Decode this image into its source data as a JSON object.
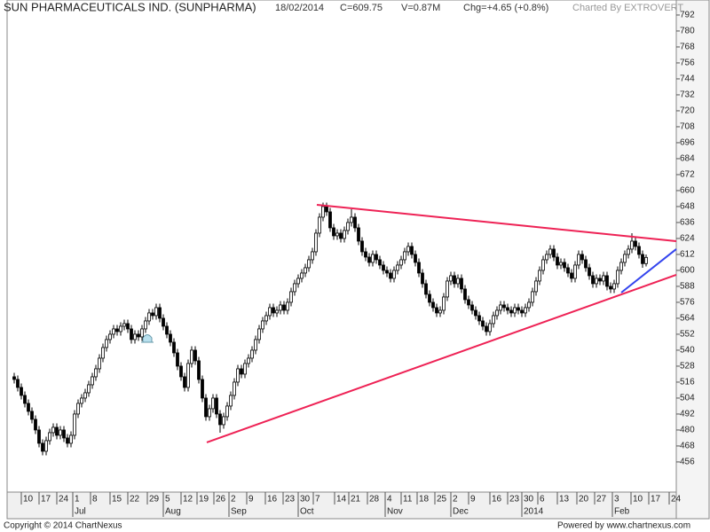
{
  "chart_data": {
    "type": "candlestick",
    "title": "SUN PHARMACEUTICALS IND. (SUNPHARMA)",
    "date": "18/02/2014",
    "close_label": "C=609.75",
    "volume_label": "V=0.87M",
    "change_label": "Chg=+4.65 (+0.8%)",
    "credit": "Charted By EXTROVERT",
    "copyright": "Copyright © 2014 ChartNexus",
    "powered_by": "Powered by www.chartnexus.com",
    "up_color": "#ffffff",
    "down_color": "#000000",
    "ohlc": [
      [
        520,
        523,
        515,
        518
      ],
      [
        518,
        521,
        509,
        512
      ],
      [
        512,
        515,
        503,
        506
      ],
      [
        506,
        509,
        497,
        500
      ],
      [
        500,
        503,
        491,
        494
      ],
      [
        494,
        497,
        485,
        488
      ],
      [
        488,
        491,
        477,
        480
      ],
      [
        480,
        483,
        467,
        470
      ],
      [
        470,
        473,
        461,
        464
      ],
      [
        464,
        475,
        461,
        472
      ],
      [
        472,
        481,
        469,
        478
      ],
      [
        478,
        485,
        475,
        482
      ],
      [
        482,
        485,
        473,
        476
      ],
      [
        476,
        483,
        473,
        480
      ],
      [
        480,
        483,
        471,
        474
      ],
      [
        474,
        477,
        467,
        470
      ],
      [
        470,
        479,
        467,
        476
      ],
      [
        476,
        495,
        473,
        492
      ],
      [
        492,
        503,
        489,
        500
      ],
      [
        500,
        507,
        497,
        504
      ],
      [
        504,
        511,
        501,
        508
      ],
      [
        508,
        517,
        505,
        514
      ],
      [
        514,
        523,
        511,
        520
      ],
      [
        520,
        529,
        517,
        526
      ],
      [
        526,
        537,
        523,
        534
      ],
      [
        534,
        545,
        531,
        542
      ],
      [
        542,
        551,
        539,
        548
      ],
      [
        548,
        555,
        545,
        552
      ],
      [
        552,
        559,
        549,
        556
      ],
      [
        556,
        559,
        551,
        554
      ],
      [
        554,
        561,
        551,
        558
      ],
      [
        558,
        563,
        555,
        560
      ],
      [
        560,
        563,
        553,
        556
      ],
      [
        556,
        559,
        545,
        548
      ],
      [
        548,
        555,
        545,
        552
      ],
      [
        552,
        555,
        547,
        550
      ],
      [
        550,
        559,
        547,
        556
      ],
      [
        556,
        565,
        553,
        562
      ],
      [
        562,
        571,
        559,
        568
      ],
      [
        568,
        571,
        563,
        566
      ],
      [
        566,
        575,
        563,
        572
      ],
      [
        572,
        575,
        561,
        564
      ],
      [
        564,
        567,
        555,
        558
      ],
      [
        558,
        561,
        549,
        552
      ],
      [
        552,
        555,
        543,
        546
      ],
      [
        546,
        549,
        535,
        538
      ],
      [
        538,
        541,
        525,
        528
      ],
      [
        528,
        531,
        517,
        520
      ],
      [
        520,
        523,
        509,
        512
      ],
      [
        512,
        533,
        509,
        530
      ],
      [
        530,
        543,
        527,
        540
      ],
      [
        540,
        543,
        529,
        532
      ],
      [
        532,
        535,
        515,
        518
      ],
      [
        518,
        521,
        501,
        504
      ],
      [
        504,
        507,
        487,
        490
      ],
      [
        490,
        499,
        487,
        496
      ],
      [
        496,
        507,
        493,
        504
      ],
      [
        504,
        507,
        489,
        492
      ],
      [
        492,
        495,
        478,
        484
      ],
      [
        484,
        493,
        481,
        490
      ],
      [
        490,
        501,
        487,
        498
      ],
      [
        498,
        509,
        495,
        506
      ],
      [
        506,
        519,
        503,
        516
      ],
      [
        516,
        529,
        513,
        526
      ],
      [
        526,
        529,
        519,
        522
      ],
      [
        522,
        533,
        519,
        530
      ],
      [
        530,
        537,
        527,
        534
      ],
      [
        534,
        543,
        531,
        540
      ],
      [
        540,
        551,
        537,
        548
      ],
      [
        548,
        559,
        545,
        556
      ],
      [
        556,
        565,
        553,
        562
      ],
      [
        562,
        569,
        559,
        566
      ],
      [
        566,
        575,
        563,
        572
      ],
      [
        572,
        575,
        565,
        568
      ],
      [
        568,
        573,
        565,
        570
      ],
      [
        570,
        577,
        567,
        574
      ],
      [
        574,
        577,
        567,
        570
      ],
      [
        570,
        579,
        567,
        576
      ],
      [
        576,
        587,
        573,
        584
      ],
      [
        584,
        593,
        581,
        590
      ],
      [
        590,
        597,
        587,
        594
      ],
      [
        594,
        601,
        591,
        598
      ],
      [
        598,
        605,
        595,
        602
      ],
      [
        602,
        611,
        599,
        608
      ],
      [
        608,
        617,
        605,
        614
      ],
      [
        614,
        631,
        611,
        628
      ],
      [
        628,
        643,
        625,
        640
      ],
      [
        640,
        651,
        637,
        648
      ],
      [
        648,
        651,
        641,
        644
      ],
      [
        644,
        647,
        629,
        632
      ],
      [
        632,
        635,
        623,
        626
      ],
      [
        626,
        631,
        623,
        628
      ],
      [
        628,
        631,
        621,
        624
      ],
      [
        624,
        633,
        621,
        630
      ],
      [
        630,
        639,
        627,
        636
      ],
      [
        636,
        646,
        633,
        640
      ],
      [
        640,
        643,
        629,
        632
      ],
      [
        632,
        635,
        619,
        622
      ],
      [
        622,
        625,
        611,
        614
      ],
      [
        614,
        617,
        607,
        610
      ],
      [
        610,
        613,
        603,
        606
      ],
      [
        606,
        615,
        603,
        612
      ],
      [
        612,
        615,
        605,
        608
      ],
      [
        608,
        611,
        601,
        604
      ],
      [
        604,
        607,
        597,
        600
      ],
      [
        600,
        603,
        595,
        598
      ],
      [
        598,
        601,
        591,
        594
      ],
      [
        594,
        603,
        591,
        600
      ],
      [
        600,
        607,
        597,
        604
      ],
      [
        604,
        611,
        601,
        608
      ],
      [
        608,
        617,
        605,
        614
      ],
      [
        614,
        621,
        611,
        618
      ],
      [
        618,
        621,
        609,
        612
      ],
      [
        612,
        615,
        603,
        606
      ],
      [
        606,
        609,
        595,
        598
      ],
      [
        598,
        601,
        587,
        590
      ],
      [
        590,
        593,
        579,
        582
      ],
      [
        582,
        585,
        573,
        576
      ],
      [
        576,
        579,
        569,
        572
      ],
      [
        572,
        575,
        565,
        568
      ],
      [
        568,
        573,
        565,
        570
      ],
      [
        570,
        583,
        567,
        580
      ],
      [
        580,
        595,
        577,
        592
      ],
      [
        592,
        599,
        589,
        596
      ],
      [
        596,
        599,
        587,
        590
      ],
      [
        590,
        597,
        587,
        594
      ],
      [
        594,
        597,
        583,
        586
      ],
      [
        586,
        589,
        575,
        578
      ],
      [
        578,
        581,
        571,
        574
      ],
      [
        574,
        577,
        567,
        570
      ],
      [
        570,
        573,
        563,
        566
      ],
      [
        566,
        569,
        559,
        562
      ],
      [
        562,
        565,
        555,
        558
      ],
      [
        558,
        561,
        551,
        554
      ],
      [
        554,
        563,
        551,
        560
      ],
      [
        560,
        569,
        557,
        566
      ],
      [
        566,
        573,
        563,
        570
      ],
      [
        570,
        577,
        567,
        574
      ],
      [
        574,
        577,
        569,
        572
      ],
      [
        572,
        575,
        567,
        570
      ],
      [
        570,
        573,
        565,
        568
      ],
      [
        568,
        575,
        565,
        572
      ],
      [
        572,
        575,
        567,
        570
      ],
      [
        570,
        573,
        565,
        568
      ],
      [
        568,
        575,
        565,
        572
      ],
      [
        572,
        579,
        569,
        576
      ],
      [
        576,
        587,
        573,
        584
      ],
      [
        584,
        595,
        581,
        592
      ],
      [
        592,
        603,
        589,
        600
      ],
      [
        600,
        611,
        597,
        608
      ],
      [
        608,
        615,
        605,
        612
      ],
      [
        612,
        619,
        609,
        616
      ],
      [
        616,
        619,
        607,
        610
      ],
      [
        610,
        613,
        601,
        604
      ],
      [
        604,
        609,
        601,
        606
      ],
      [
        606,
        609,
        599,
        602
      ],
      [
        602,
        605,
        595,
        598
      ],
      [
        598,
        601,
        591,
        594
      ],
      [
        594,
        607,
        591,
        604
      ],
      [
        604,
        615,
        601,
        612
      ],
      [
        612,
        615,
        605,
        608
      ],
      [
        608,
        611,
        599,
        602
      ],
      [
        602,
        605,
        593,
        596
      ],
      [
        596,
        599,
        587,
        590
      ],
      [
        590,
        597,
        587,
        594
      ],
      [
        594,
        597,
        589,
        592
      ],
      [
        592,
        599,
        589,
        596
      ],
      [
        596,
        599,
        585,
        588
      ],
      [
        588,
        591,
        583,
        586
      ],
      [
        586,
        593,
        583,
        590
      ],
      [
        590,
        603,
        587,
        600
      ],
      [
        600,
        609,
        597,
        606
      ],
      [
        606,
        615,
        603,
        612
      ],
      [
        612,
        619,
        609,
        616
      ],
      [
        616,
        628,
        613,
        622
      ],
      [
        622,
        625,
        615,
        618
      ],
      [
        618,
        621,
        609,
        612
      ],
      [
        612,
        615,
        602,
        605.1
      ],
      [
        605.1,
        612,
        603,
        609.75
      ]
    ],
    "xlim": [
      -2,
      186.5
    ],
    "ylim": [
      433.3,
      803.3
    ],
    "yticks": [
      456,
      468,
      480,
      492,
      504,
      516,
      528,
      540,
      552,
      564,
      576,
      588,
      600,
      612,
      624,
      636,
      648,
      660,
      672,
      684,
      696,
      708,
      720,
      732,
      744,
      756,
      768,
      780,
      792
    ],
    "xticks": [
      {
        "value": 2,
        "label": "10"
      },
      {
        "value": 7,
        "label": "17"
      },
      {
        "value": 12,
        "label": "24"
      },
      {
        "value": 16.5,
        "label": "1"
      },
      {
        "value": 21.5,
        "label": "8"
      },
      {
        "value": 27,
        "label": "15"
      },
      {
        "value": 32,
        "label": "22"
      },
      {
        "value": 37.5,
        "label": "29"
      },
      {
        "value": 42,
        "label": "5"
      },
      {
        "value": 47,
        "label": "12"
      },
      {
        "value": 51.5,
        "label": "19"
      },
      {
        "value": 56.25,
        "label": "26"
      },
      {
        "value": 60.5,
        "label": "2"
      },
      {
        "value": 65.5,
        "label": "9"
      },
      {
        "value": 70.75,
        "label": "16"
      },
      {
        "value": 75.75,
        "label": "23"
      },
      {
        "value": 80,
        "label": "30"
      },
      {
        "value": 84.25,
        "label": "7"
      },
      {
        "value": 90.25,
        "label": "14"
      },
      {
        "value": 94.25,
        "label": "21"
      },
      {
        "value": 99.5,
        "label": "28"
      },
      {
        "value": 104.5,
        "label": "4"
      },
      {
        "value": 109,
        "label": "11"
      },
      {
        "value": 113.5,
        "label": "18"
      },
      {
        "value": 118.5,
        "label": "25"
      },
      {
        "value": 123,
        "label": "2"
      },
      {
        "value": 128,
        "label": "9"
      },
      {
        "value": 134,
        "label": "16"
      },
      {
        "value": 139,
        "label": "23"
      },
      {
        "value": 143,
        "label": "30"
      },
      {
        "value": 147.5,
        "label": "6"
      },
      {
        "value": 153,
        "label": "13"
      },
      {
        "value": 158.5,
        "label": "20"
      },
      {
        "value": 163.5,
        "label": "27"
      },
      {
        "value": 168.5,
        "label": "3"
      },
      {
        "value": 173.75,
        "label": "10"
      },
      {
        "value": 178.75,
        "label": "17"
      },
      {
        "value": 184.5,
        "label": "24"
      }
    ],
    "month_ticks": [
      {
        "value": 16.5,
        "label": "Jul"
      },
      {
        "value": 42,
        "label": "Aug"
      },
      {
        "value": 60.5,
        "label": "Sep"
      },
      {
        "value": 80,
        "label": "Oct"
      },
      {
        "value": 104.5,
        "label": "Nov"
      },
      {
        "value": 123,
        "label": "Dec"
      },
      {
        "value": 143,
        "label": "2014"
      },
      {
        "value": 168.5,
        "label": "Feb"
      }
    ],
    "trendlines": [
      {
        "color": "#ee2255",
        "x": [
          85.25,
          186.5
        ],
        "y": [
          649.3,
          622
        ]
      },
      {
        "color": "#ee2255",
        "x": [
          54.25,
          186.5
        ],
        "y": [
          470.7,
          596.7
        ]
      },
      {
        "color": "#3344ee",
        "x": [
          171,
          186.5
        ],
        "y": [
          583.3,
          616
        ]
      }
    ]
  }
}
